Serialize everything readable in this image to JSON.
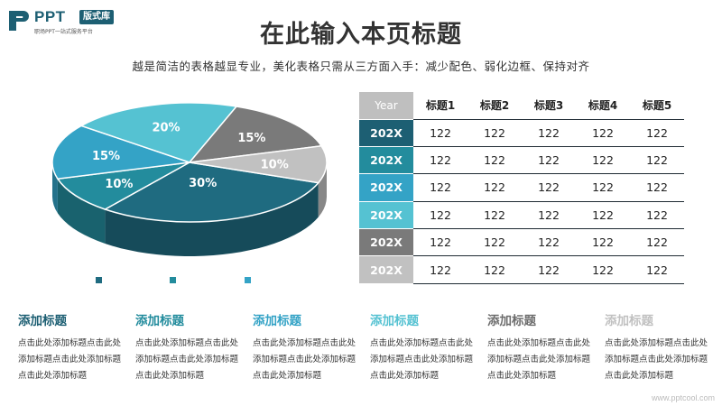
{
  "logo": {
    "brand": "PPT",
    "tag": "版式库",
    "sub": "职场PPT一站式服务平台",
    "mark_color": "#1d5f73"
  },
  "header": {
    "title": "在此输入本页标题",
    "subtitle": "越是简洁的表格越显专业，美化表格只需从三方面入手：减少配色、弱化边框、保持对齐"
  },
  "chart_data": {
    "type": "pie",
    "title": "",
    "slices": [
      {
        "label": "30%",
        "value": 30,
        "color": "#1f6b80"
      },
      {
        "label": "10%",
        "value": 10,
        "color": "#238c9d"
      },
      {
        "label": "15%",
        "value": 15,
        "color": "#34a3c6"
      },
      {
        "label": "20%",
        "value": 20,
        "color": "#55c2d2"
      },
      {
        "label": "15%",
        "value": 15,
        "color": "#7a7a7a"
      },
      {
        "label": "10%",
        "value": 10,
        "color": "#c1c1c1"
      }
    ],
    "legend_colors": [
      "#1f6b80",
      "#238c9d",
      "#34a3c6"
    ]
  },
  "table": {
    "header": [
      "Year",
      "标题1",
      "标题2",
      "标题3",
      "标题4",
      "标题5"
    ],
    "rows": [
      {
        "label": "202X",
        "color": "#1d5f73",
        "cells": [
          "122",
          "122",
          "122",
          "122",
          "122"
        ]
      },
      {
        "label": "202X",
        "color": "#238c9d",
        "cells": [
          "122",
          "122",
          "122",
          "122",
          "122"
        ]
      },
      {
        "label": "202X",
        "color": "#34a3c6",
        "cells": [
          "122",
          "122",
          "122",
          "122",
          "122"
        ]
      },
      {
        "label": "202X",
        "color": "#55c2d2",
        "cells": [
          "122",
          "122",
          "122",
          "122",
          "122"
        ]
      },
      {
        "label": "202X",
        "color": "#7a7a7a",
        "cells": [
          "122",
          "122",
          "122",
          "122",
          "122"
        ]
      },
      {
        "label": "202X",
        "color": "#c1c1c1",
        "cells": [
          "122",
          "122",
          "122",
          "122",
          "122"
        ]
      }
    ]
  },
  "columns": [
    {
      "heading": "添加标题",
      "color": "#1d5f73",
      "text": "点击此处添加标题点击此处添加标题点击此处添加标题点击此处添加标题"
    },
    {
      "heading": "添加标题",
      "color": "#238c9d",
      "text": "点击此处添加标题点击此处添加标题点击此处添加标题点击此处添加标题"
    },
    {
      "heading": "添加标题",
      "color": "#34a3c6",
      "text": "点击此处添加标题点击此处添加标题点击此处添加标题点击此处添加标题"
    },
    {
      "heading": "添加标题",
      "color": "#55c2d2",
      "text": "点击此处添加标题点击此处添加标题点击此处添加标题点击此处添加标题"
    },
    {
      "heading": "添加标题",
      "color": "#6e6e6e",
      "text": "点击此处添加标题点击此处添加标题点击此处添加标题点击此处添加标题"
    },
    {
      "heading": "添加标题",
      "color": "#c1c1c1",
      "text": "点击此处添加标题点击此处添加标题点击此处添加标题点击此处添加标题"
    }
  ],
  "watermark": "www.pptcool.com"
}
